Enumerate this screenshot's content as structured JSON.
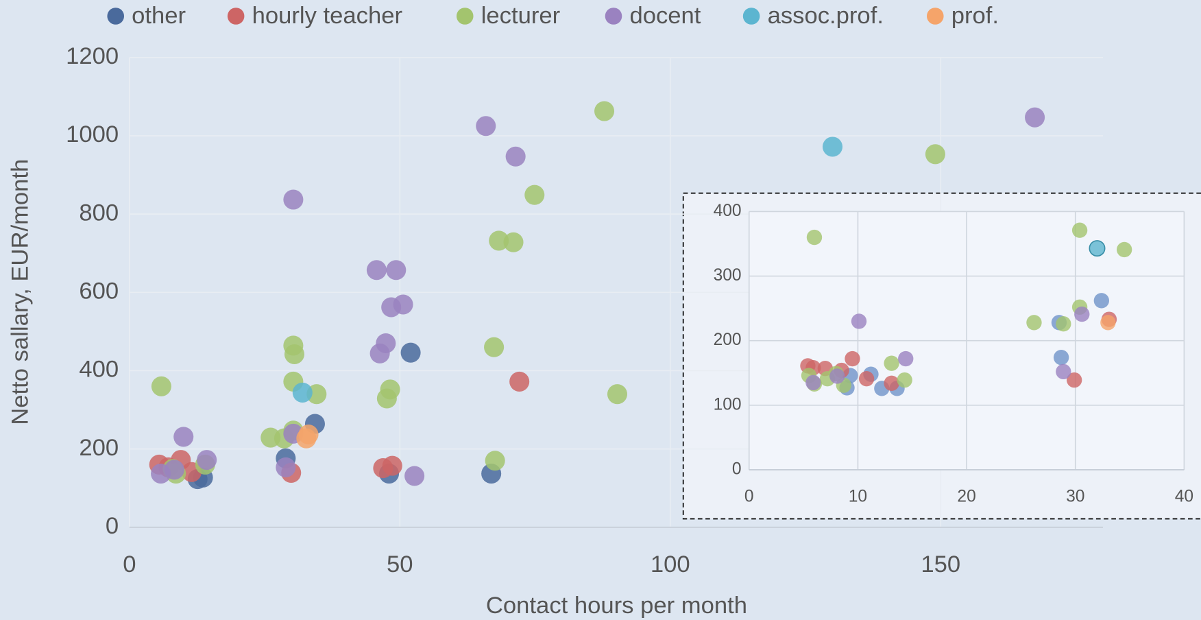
{
  "chart_data": [
    {
      "type": "scatter",
      "x_label": "Contact hours per month",
      "y_label": "Netto sallary, EUR/month",
      "xlim": [
        0,
        180
      ],
      "ylim": [
        0,
        1200
      ],
      "xticks": [
        0,
        50,
        100,
        150
      ],
      "yticks": [
        0,
        200,
        400,
        600,
        800,
        1000,
        1200
      ],
      "grid": true,
      "legend": "top",
      "series": [
        {
          "name": "other",
          "color": "#4a6a9c",
          "x": [
            12.6,
            13.6,
            28.9,
            34.3,
            52,
            48,
            66.9
          ],
          "values": [
            123,
            127,
            176,
            264,
            446,
            137,
            137
          ]
        },
        {
          "name": "hourly teacher",
          "color": "#cd6565",
          "x": [
            5.5,
            9.5,
            11.5,
            29.9,
            46.9,
            48.6,
            72.1,
            7.2
          ],
          "values": [
            160,
            172,
            141,
            139,
            151,
            157,
            372,
            153
          ]
        },
        {
          "name": "lecturer",
          "color": "#a3c46e",
          "x": [
            5.9,
            8.6,
            8,
            14,
            26.1,
            28.6,
            30.3,
            30.5,
            30.3,
            30.3,
            34.6,
            47.6,
            48.2,
            67.4,
            67.6,
            68.3,
            71,
            74.9,
            87.8,
            90.2,
            149
          ],
          "values": [
            360,
            137,
            149,
            160,
            229,
            227,
            464,
            442,
            372,
            247,
            340,
            329,
            352,
            460,
            170,
            732,
            728,
            849,
            1063,
            340,
            953
          ]
        },
        {
          "name": "docent",
          "color": "#9a82c0",
          "x": [
            5.8,
            10,
            14.3,
            28.9,
            30.3,
            30.3,
            45.7,
            49.3,
            48.4,
            50.6,
            47.4,
            46.3,
            52.7,
            65.9,
            71.4,
            167.4,
            8.3
          ],
          "values": [
            137,
            231,
            172,
            153,
            239,
            837,
            657,
            657,
            562,
            569,
            470,
            444,
            131,
            1025,
            947,
            1047,
            147
          ]
        },
        {
          "name": "assoc.prof.",
          "color": "#5cb5d0",
          "x": [
            32,
            130
          ],
          "values": [
            344,
            972
          ]
        },
        {
          "name": "prof.",
          "color": "#f5a46a",
          "x": [
            32.7,
            33.1
          ],
          "values": [
            227,
            237
          ]
        }
      ]
    },
    {
      "type": "scatter",
      "xlim": [
        0,
        40
      ],
      "ylim": [
        0,
        400
      ],
      "xticks": [
        0,
        10,
        20,
        30,
        40
      ],
      "yticks": [
        0,
        100,
        200,
        300,
        400
      ],
      "grid": true,
      "series": [
        {
          "name": "other",
          "color": "#6f93c9",
          "x": [
            9.3,
            9,
            11.2,
            12.2,
            13.6,
            28.5,
            28.7,
            32.4
          ],
          "values": [
            146,
            127,
            148,
            126,
            126,
            228,
            174,
            262
          ]
        },
        {
          "name": "hourly teacher",
          "color": "#cd6565",
          "x": [
            5.4,
            5.9,
            7,
            8.5,
            9.5,
            10.8,
            13.1,
            29.9,
            33.1
          ],
          "values": [
            161,
            158,
            157,
            154,
            172,
            141,
            134,
            139,
            233
          ]
        },
        {
          "name": "lecturer",
          "color": "#a3c46e",
          "x": [
            6,
            5.5,
            6,
            7.2,
            8.7,
            13.1,
            14.3,
            26.2,
            28.9,
            30.4,
            30.4,
            34.5,
            8
          ],
          "values": [
            360,
            146,
            133,
            141,
            131,
            165,
            139,
            228,
            226,
            252,
            371,
            341,
            149
          ]
        },
        {
          "name": "docent",
          "color": "#9a82c0",
          "x": [
            10.1,
            14.4,
            5.9,
            8.1,
            28.9,
            30.6
          ],
          "values": [
            230,
            172,
            135,
            145,
            152,
            241
          ]
        },
        {
          "name": "assoc.prof.",
          "color": "#5cb5d0",
          "x": [
            32
          ],
          "values": [
            343
          ]
        },
        {
          "name": "prof.",
          "color": "#f5a46a",
          "x": [
            33
          ],
          "values": [
            228
          ]
        }
      ]
    }
  ]
}
